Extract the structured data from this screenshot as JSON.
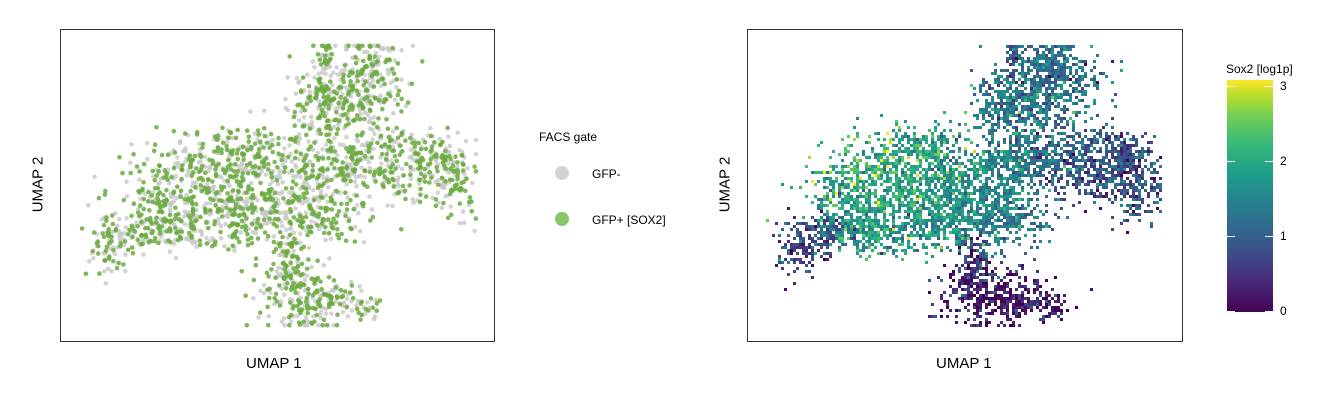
{
  "chart_data": [
    {
      "type": "scatter",
      "xlabel": "UMAP 1",
      "ylabel": "UMAP 2",
      "legend": {
        "title": "FACS gate",
        "placement": "right",
        "entries": [
          {
            "label": "GFP-",
            "color": "#d3d3d3"
          },
          {
            "label": "GFP+ [SOX2]",
            "color": "#8cc46a"
          }
        ]
      },
      "point_color_gfp_pos": "#6aaa3e",
      "point_color_gfp_neg": "#c8c8c8",
      "grid": false,
      "axis_ticks": false
    },
    {
      "type": "heatmap",
      "xlabel": "UMAP 1",
      "ylabel": "UMAP 2",
      "colorbar": {
        "title": "Sox2 [log1p]",
        "placement": "right",
        "range": [
          0,
          3
        ],
        "ticks": [
          "0",
          "1",
          "2",
          "3"
        ],
        "colormap": "viridis"
      },
      "grid": false,
      "axis_ticks": false
    }
  ]
}
